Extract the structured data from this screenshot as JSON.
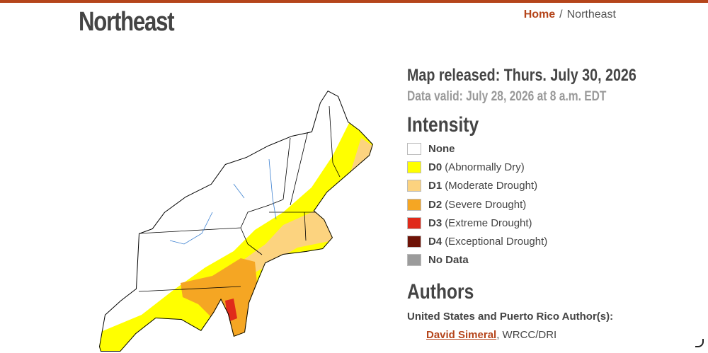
{
  "header": {
    "title": "Northeast",
    "breadcrumb": {
      "home": "Home",
      "separator": "/",
      "current": "Northeast"
    }
  },
  "map_info": {
    "released": "Map released: Thurs. July 30, 2026",
    "valid": "Data valid: July 28, 2026 at 8 a.m. EDT"
  },
  "legend": {
    "title": "Intensity",
    "items": [
      {
        "code": "None",
        "color": "#ffffff"
      },
      {
        "code": "D0",
        "label": "(Abnormally Dry)",
        "color": "#ffff00"
      },
      {
        "code": "D1",
        "label": "(Moderate Drought)",
        "color": "#fcd37f"
      },
      {
        "code": "D2",
        "label": "(Severe Drought)",
        "color": "#f5a623"
      },
      {
        "code": "D3",
        "label": "(Extreme Drought)",
        "color": "#e02a1a"
      },
      {
        "code": "D4",
        "label": "(Exceptional Drought)",
        "color": "#6e1307"
      },
      {
        "code": "No Data",
        "color": "#9b9b9b"
      }
    ]
  },
  "authors": {
    "title": "Authors",
    "subtitle": "United States and Puerto Rico Author(s):",
    "name": "David Simeral",
    "affiliation": ", WRCC/DRI"
  }
}
